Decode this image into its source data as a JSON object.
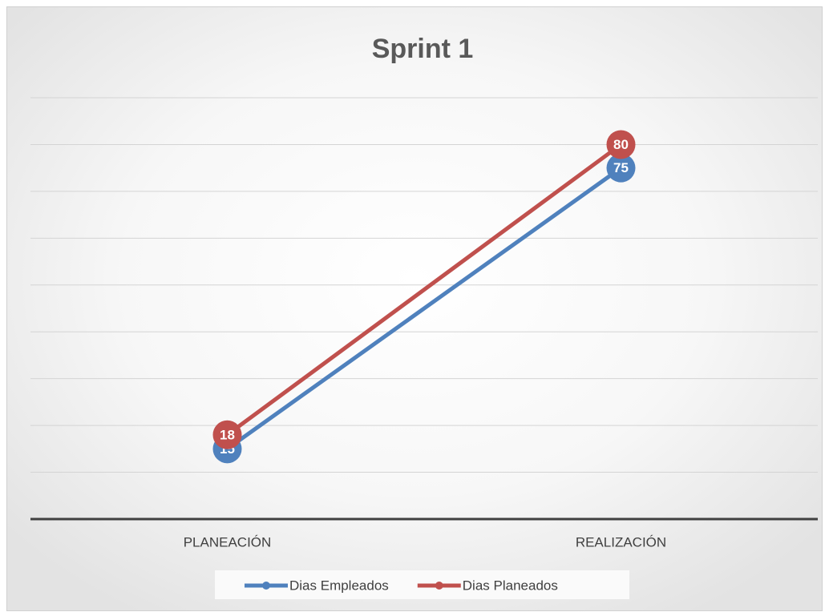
{
  "chart_data": {
    "type": "line",
    "title": "Sprint 1",
    "categories": [
      "PLANEACIÓN",
      "REALIZACIÓN"
    ],
    "series": [
      {
        "name": "Dias Empleados",
        "color": "#4f81bd",
        "values": [
          15,
          75
        ]
      },
      {
        "name": "Dias Planeados",
        "color": "#c0504d",
        "values": [
          18,
          80
        ]
      }
    ],
    "ylim": [
      0,
      90
    ],
    "yticks": [
      0,
      10,
      20,
      30,
      40,
      50,
      60,
      70,
      80,
      90
    ],
    "grid": true,
    "legend": "bottom"
  }
}
